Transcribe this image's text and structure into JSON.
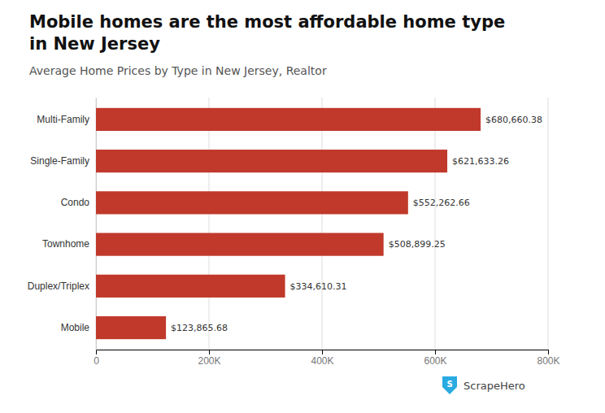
{
  "chart_data": {
    "type": "bar",
    "orientation": "horizontal",
    "title": [
      "Mobile homes are the most affordable home type",
      "in New Jersey"
    ],
    "subtitle": "Average Home Prices by Type in New Jersey, Realtor",
    "categories": [
      "Multi-Family",
      "Single-Family",
      "Condo",
      "Townhome",
      "Duplex/Triplex",
      "Mobile"
    ],
    "values": [
      680660.38,
      621633.26,
      552262.66,
      508899.25,
      334610.31,
      123865.68
    ],
    "value_labels": [
      "$680,660.38",
      "$621,633.26",
      "$552,262.66",
      "$508,899.25",
      "$334,610.31",
      "$123,865.68"
    ],
    "data_labels": true,
    "color": "#C0392B",
    "xlim": [
      0,
      800000
    ],
    "xticks": [
      0,
      {
        "value": 200000,
        "label": "200K"
      },
      {
        "value": 400000,
        "label": "400K"
      },
      {
        "value": 600000,
        "label": "600K"
      },
      {
        "value": 800000,
        "label": "800K"
      }
    ],
    "grid": true,
    "annotations": [
      {
        "text": "S",
        "color": "#29ABE2"
      },
      {
        "text": "ScrapeHero"
      }
    ]
  }
}
